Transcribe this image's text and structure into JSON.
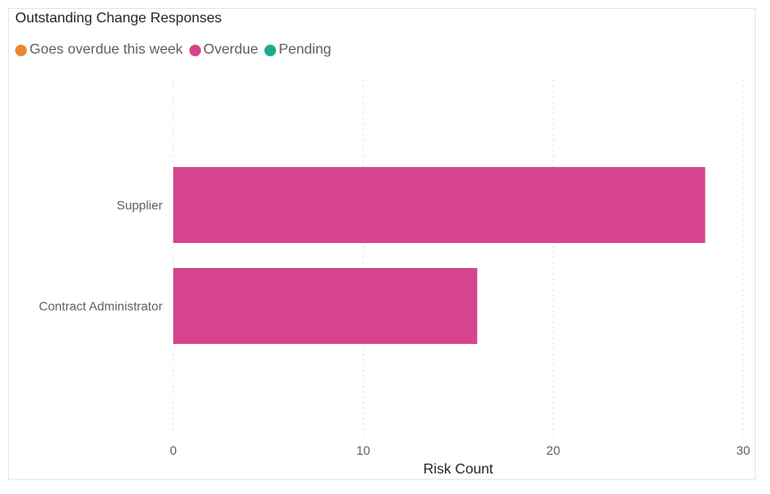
{
  "chart_data": {
    "type": "bar",
    "orientation": "horizontal",
    "title": "Outstanding Change Responses",
    "legend": {
      "placement": "top-left",
      "items": [
        {
          "label": "Goes overdue this week",
          "color": "#E8892B"
        },
        {
          "label": "Overdue",
          "color": "#D6448E"
        },
        {
          "label": "Pending",
          "color": "#1AAB8A"
        }
      ]
    },
    "categories": [
      "Supplier",
      "Contract Administrator"
    ],
    "series": [
      {
        "name": "Overdue",
        "color": "#D6448E",
        "values": [
          28,
          16
        ]
      }
    ],
    "xlabel": "Risk Count",
    "ylabel": "",
    "xlim": [
      0,
      30
    ],
    "xticks": [
      0,
      10,
      20,
      30
    ],
    "grid": "vertical dotted"
  }
}
